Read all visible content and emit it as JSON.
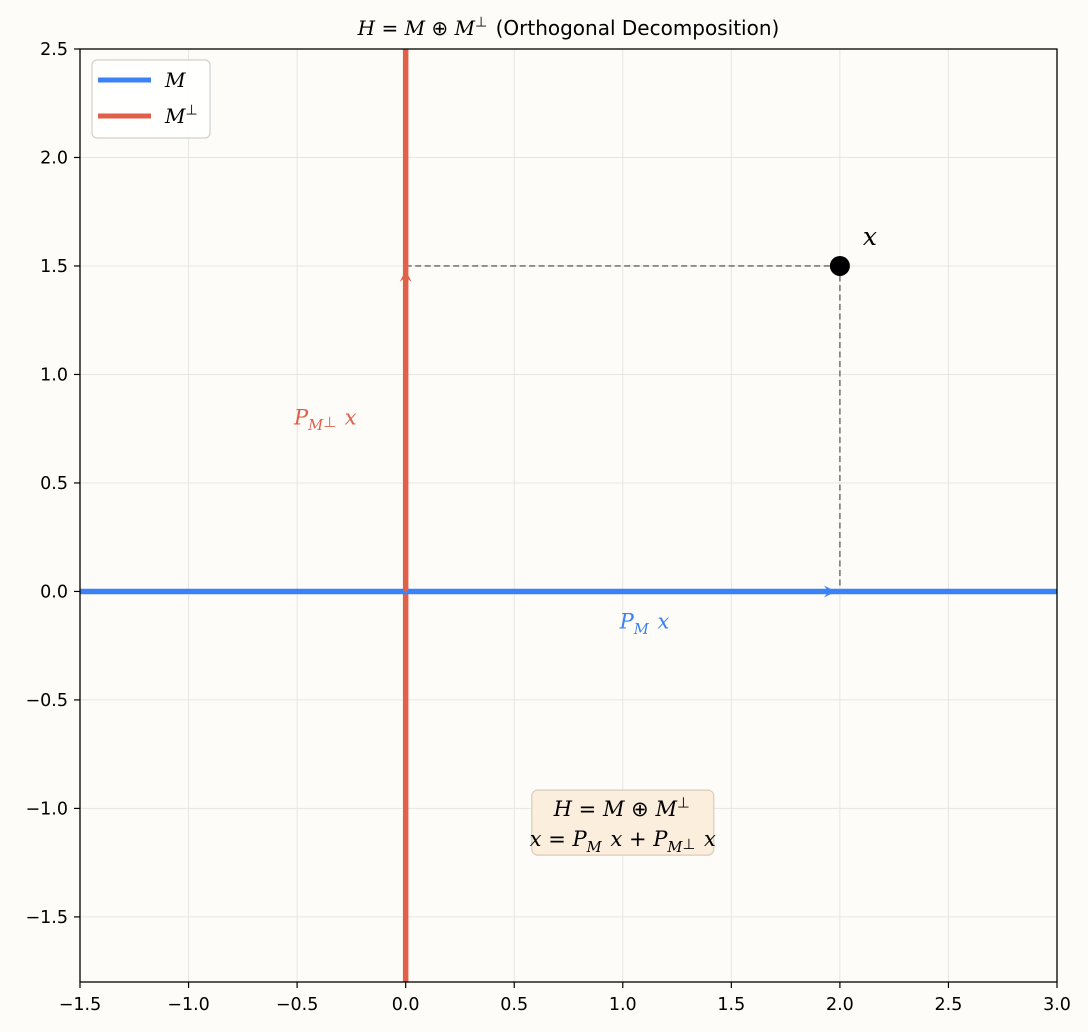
{
  "chart_data": {
    "type": "line",
    "title": "H = M ⊕ M⊥ (Orthogonal Decomposition)",
    "xlim": [
      -1.5,
      3.0
    ],
    "ylim": [
      -1.8,
      2.5
    ],
    "x_ticks": [
      -1.5,
      -1.0,
      -0.5,
      0.0,
      0.5,
      1.0,
      1.5,
      2.0,
      2.5,
      3.0
    ],
    "y_ticks": [
      -1.5,
      -1.0,
      -0.5,
      0.0,
      0.5,
      1.0,
      1.5,
      2.0,
      2.5
    ],
    "x_tick_labels": [
      "−1.5",
      "−1.0",
      "−0.5",
      "0.0",
      "0.5",
      "1.0",
      "1.5",
      "2.0",
      "2.5",
      "3.0"
    ],
    "y_tick_labels": [
      "−1.5",
      "−1.0",
      "−0.5",
      "0.0",
      "0.5",
      "1.0",
      "1.5",
      "2.0",
      "2.5"
    ],
    "grid": true,
    "legend_position": "top-left",
    "series": [
      {
        "name": "M",
        "color": "#3b82f6",
        "kind": "subspace",
        "x": [
          -1.5,
          3.0
        ],
        "y": [
          0,
          0
        ]
      },
      {
        "name": "M⊥",
        "color": "#e0604a",
        "kind": "subspace",
        "x": [
          0,
          0
        ],
        "y": [
          -1.8,
          2.5
        ]
      }
    ],
    "point": {
      "label": "x",
      "x": 2.0,
      "y": 1.5,
      "color": "#000000"
    },
    "projections": [
      {
        "label": "P_M x",
        "from": [
          0,
          0
        ],
        "to": [
          2.0,
          0
        ],
        "color": "#3b82f6",
        "label_at": [
          1.1,
          -0.17
        ]
      },
      {
        "label": "P_M⊥ x",
        "from": [
          0,
          0
        ],
        "to": [
          0,
          1.5
        ],
        "color": "#e0604a",
        "label_at": [
          -0.37,
          0.77
        ]
      }
    ],
    "guides": [
      {
        "from": [
          0,
          1.5
        ],
        "to": [
          2.0,
          1.5
        ]
      },
      {
        "from": [
          2.0,
          1.5
        ],
        "to": [
          2.0,
          0
        ]
      }
    ],
    "annotation_box": {
      "lines": [
        "H = M ⊕ M⊥",
        "x = P_M x + P_M⊥ x"
      ],
      "center": [
        1.0,
        -1.1
      ],
      "background": "#fbeedd"
    }
  }
}
